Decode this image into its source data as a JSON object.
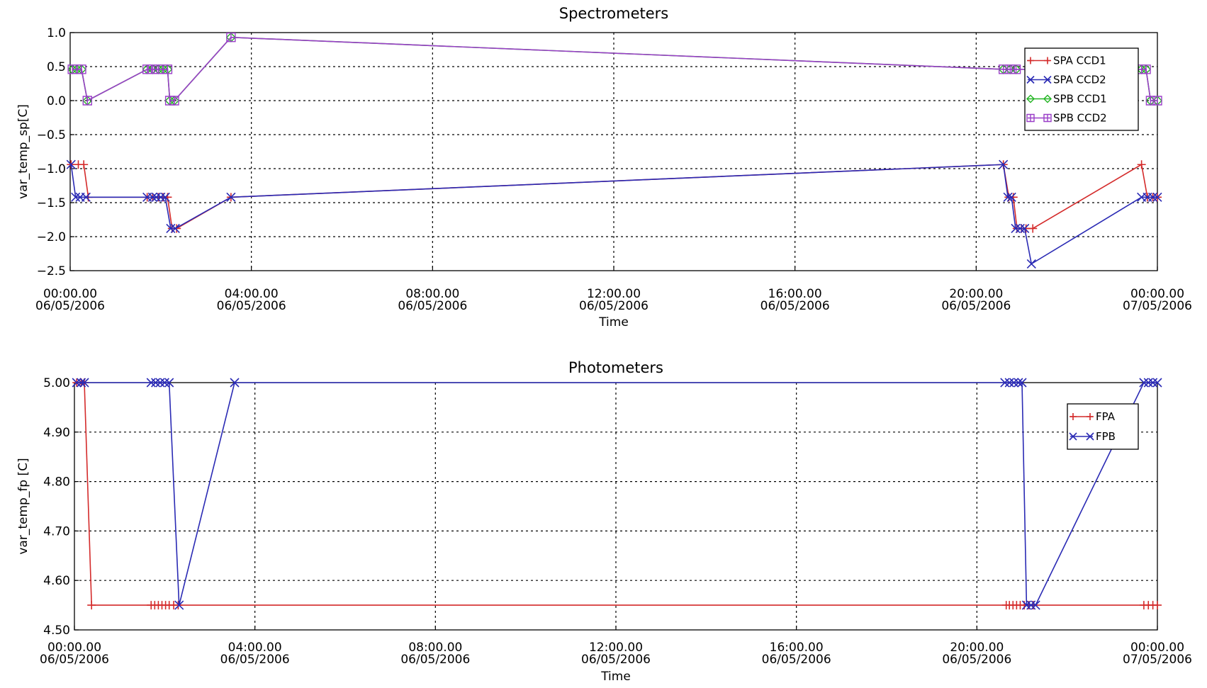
{
  "chart_data": [
    {
      "type": "line",
      "title": "Spectrometers",
      "xlabel": "Time",
      "ylabel": "var_temp_sp[C]",
      "xlim": [
        "2006-05-06 00:00",
        "2006-05-07 00:00"
      ],
      "ylim": [
        -2.5,
        1.0
      ],
      "yticks": [
        1.0,
        0.5,
        0.0,
        -0.5,
        -1.0,
        -1.5,
        -2.0,
        -2.5
      ],
      "ytick_labels": [
        "1.0",
        "0.5",
        "0.0",
        "−0.5",
        "−1.0",
        "−1.5",
        "−2.0",
        "−2.5"
      ],
      "xticks": [
        {
          "time": "00:00.00",
          "date": "06/05/2006",
          "hour": 0
        },
        {
          "time": "04:00.00",
          "date": "06/05/2006",
          "hour": 4
        },
        {
          "time": "08:00.00",
          "date": "06/05/2006",
          "hour": 8
        },
        {
          "time": "12:00.00",
          "date": "06/05/2006",
          "hour": 12
        },
        {
          "time": "16:00.00",
          "date": "06/05/2006",
          "hour": 16
        },
        {
          "time": "20:00.00",
          "date": "06/05/2006",
          "hour": 20
        },
        {
          "time": "00:00.00",
          "date": "07/05/2006",
          "hour": 24
        }
      ],
      "grid": true,
      "legend_position": "top-right",
      "series": [
        {
          "name": "SPA CCD1",
          "color": "#d42a2a",
          "marker": "plus",
          "points": [
            [
              0.02,
              -0.94
            ],
            [
              0.18,
              -0.94
            ],
            [
              0.3,
              -0.94
            ],
            [
              0.4,
              -1.42
            ],
            [
              1.7,
              -1.42
            ],
            [
              1.82,
              -1.42
            ],
            [
              1.95,
              -1.42
            ],
            [
              2.05,
              -1.42
            ],
            [
              2.15,
              -1.42
            ],
            [
              2.25,
              -1.88
            ],
            [
              2.35,
              -1.88
            ],
            [
              3.55,
              -1.42
            ],
            [
              20.6,
              -0.94
            ],
            [
              20.72,
              -1.42
            ],
            [
              20.82,
              -1.42
            ],
            [
              20.9,
              -1.88
            ],
            [
              21.0,
              -1.88
            ],
            [
              21.1,
              -1.88
            ],
            [
              21.25,
              -1.88
            ],
            [
              23.65,
              -0.94
            ],
            [
              23.78,
              -1.42
            ],
            [
              23.9,
              -1.42
            ],
            [
              24.0,
              -1.42
            ]
          ]
        },
        {
          "name": "SPA CCD2",
          "color": "#2a2ab4",
          "marker": "x",
          "points": [
            [
              0.02,
              -0.94
            ],
            [
              0.12,
              -1.42
            ],
            [
              0.22,
              -1.42
            ],
            [
              0.35,
              -1.42
            ],
            [
              1.7,
              -1.42
            ],
            [
              1.82,
              -1.42
            ],
            [
              1.9,
              -1.42
            ],
            [
              2.0,
              -1.42
            ],
            [
              2.1,
              -1.42
            ],
            [
              2.22,
              -1.88
            ],
            [
              2.32,
              -1.88
            ],
            [
              3.55,
              -1.42
            ],
            [
              20.6,
              -0.94
            ],
            [
              20.7,
              -1.42
            ],
            [
              20.78,
              -1.42
            ],
            [
              20.87,
              -1.88
            ],
            [
              20.97,
              -1.88
            ],
            [
              21.07,
              -1.88
            ],
            [
              21.22,
              -2.4
            ],
            [
              23.65,
              -1.42
            ],
            [
              23.78,
              -1.42
            ],
            [
              23.9,
              -1.42
            ],
            [
              24.0,
              -1.42
            ]
          ]
        },
        {
          "name": "SPB CCD1",
          "color": "#22b422",
          "marker": "diamond",
          "points": [
            [
              0.05,
              0.46
            ],
            [
              0.15,
              0.46
            ],
            [
              0.25,
              0.46
            ],
            [
              0.38,
              0.0
            ],
            [
              1.7,
              0.46
            ],
            [
              1.82,
              0.46
            ],
            [
              1.95,
              0.46
            ],
            [
              2.05,
              0.46
            ],
            [
              2.15,
              0.46
            ],
            [
              2.2,
              0.0
            ],
            [
              2.3,
              0.0
            ],
            [
              3.55,
              0.93
            ],
            [
              20.6,
              0.46
            ],
            [
              20.75,
              0.46
            ],
            [
              20.88,
              0.46
            ],
            [
              23.65,
              0.46
            ],
            [
              23.75,
              0.46
            ],
            [
              23.85,
              0.0
            ],
            [
              24.0,
              0.0
            ]
          ]
        },
        {
          "name": "SPB CCD2",
          "color": "#9a3fc8",
          "marker": "square",
          "points": [
            [
              0.05,
              0.46
            ],
            [
              0.15,
              0.46
            ],
            [
              0.25,
              0.46
            ],
            [
              0.38,
              0.0
            ],
            [
              1.7,
              0.46
            ],
            [
              1.82,
              0.46
            ],
            [
              1.95,
              0.46
            ],
            [
              2.05,
              0.46
            ],
            [
              2.15,
              0.46
            ],
            [
              2.2,
              0.0
            ],
            [
              2.3,
              0.0
            ],
            [
              3.55,
              0.93
            ],
            [
              20.6,
              0.46
            ],
            [
              20.75,
              0.46
            ],
            [
              20.88,
              0.46
            ],
            [
              21.6,
              0.46
            ],
            [
              23.65,
              0.46
            ],
            [
              23.75,
              0.46
            ],
            [
              23.85,
              0.0
            ],
            [
              24.0,
              0.0
            ]
          ]
        }
      ]
    },
    {
      "type": "line",
      "title": "Photometers",
      "xlabel": "Time",
      "ylabel": "var_temp_fp [C]",
      "xlim": [
        "2006-05-06 00:00",
        "2006-05-07 00:00"
      ],
      "ylim": [
        4.5,
        5.0
      ],
      "yticks": [
        5.0,
        4.9,
        4.8,
        4.7,
        4.6,
        4.5
      ],
      "ytick_labels": [
        "5.00",
        "4.90",
        "4.80",
        "4.70",
        "4.60",
        "4.50"
      ],
      "xticks": [
        {
          "time": "00:00.00",
          "date": "06/05/2006",
          "hour": 0
        },
        {
          "time": "04:00.00",
          "date": "06/05/2006",
          "hour": 4
        },
        {
          "time": "08:00.00",
          "date": "06/05/2006",
          "hour": 8
        },
        {
          "time": "12:00.00",
          "date": "06/05/2006",
          "hour": 12
        },
        {
          "time": "16:00.00",
          "date": "06/05/2006",
          "hour": 16
        },
        {
          "time": "20:00.00",
          "date": "06/05/2006",
          "hour": 20
        },
        {
          "time": "00:00.00",
          "date": "07/05/2006",
          "hour": 24
        }
      ],
      "grid": true,
      "legend_position": "top-right",
      "series": [
        {
          "name": "FPA",
          "color": "#d42a2a",
          "marker": "plus",
          "points": [
            [
              0.05,
              5.0
            ],
            [
              0.15,
              5.0
            ],
            [
              0.22,
              5.0
            ],
            [
              0.38,
              4.55
            ],
            [
              1.7,
              4.55
            ],
            [
              1.78,
              4.55
            ],
            [
              1.86,
              4.55
            ],
            [
              1.94,
              4.55
            ],
            [
              2.02,
              4.55
            ],
            [
              2.1,
              4.55
            ],
            [
              2.2,
              4.55
            ],
            [
              2.3,
              4.55
            ],
            [
              20.65,
              4.55
            ],
            [
              20.72,
              4.55
            ],
            [
              20.8,
              4.55
            ],
            [
              20.88,
              4.55
            ],
            [
              20.96,
              4.55
            ],
            [
              21.05,
              4.55
            ],
            [
              21.15,
              4.55
            ],
            [
              21.25,
              4.55
            ],
            [
              23.7,
              4.55
            ],
            [
              23.8,
              4.55
            ],
            [
              23.9,
              4.55
            ],
            [
              24.0,
              4.55
            ]
          ]
        },
        {
          "name": "FPB",
          "color": "#2a2ab4",
          "marker": "x",
          "points": [
            [
              0.05,
              5.0
            ],
            [
              0.15,
              5.0
            ],
            [
              0.22,
              5.0
            ],
            [
              1.7,
              5.0
            ],
            [
              1.8,
              5.0
            ],
            [
              1.9,
              5.0
            ],
            [
              2.0,
              5.0
            ],
            [
              2.1,
              5.0
            ],
            [
              2.32,
              4.55
            ],
            [
              3.55,
              5.0
            ],
            [
              20.62,
              5.0
            ],
            [
              20.72,
              5.0
            ],
            [
              20.82,
              5.0
            ],
            [
              20.92,
              5.0
            ],
            [
              21.0,
              5.0
            ],
            [
              21.1,
              4.55
            ],
            [
              21.2,
              4.55
            ],
            [
              21.3,
              4.55
            ],
            [
              23.7,
              5.0
            ],
            [
              23.8,
              5.0
            ],
            [
              23.9,
              5.0
            ],
            [
              24.0,
              5.0
            ]
          ]
        }
      ]
    }
  ]
}
